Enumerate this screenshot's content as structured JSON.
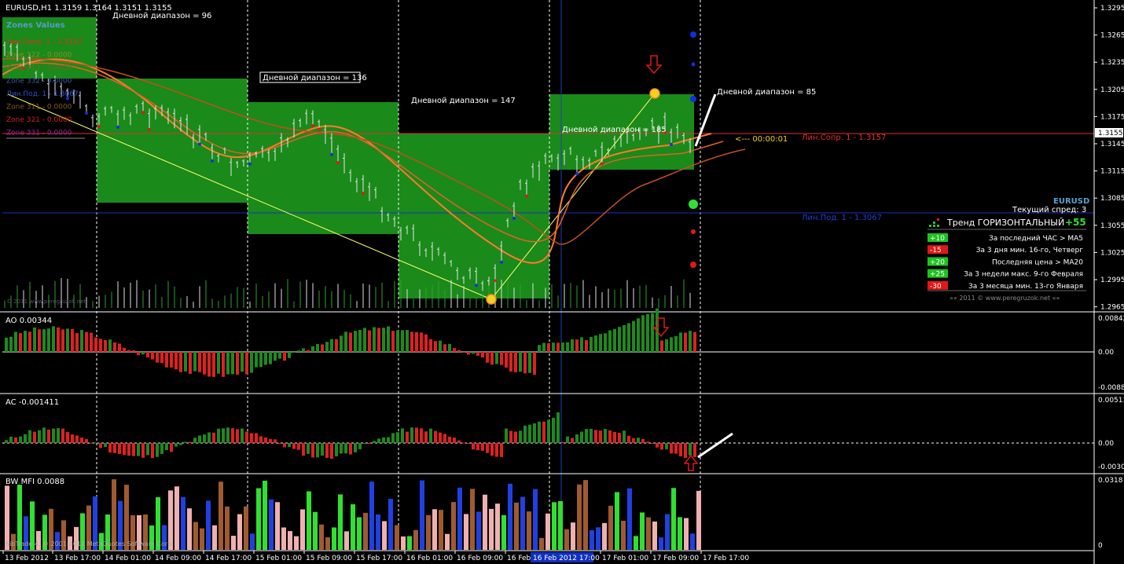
{
  "header": {
    "symbol_info": "EURUSD,H1  1.3159 1.3164 1.3151 1.3155"
  },
  "main_panel": {
    "price_ticks": [
      "1.3295",
      "1.3265",
      "1.3235",
      "1.3205",
      "1.3175",
      "1.3145",
      "1.3115",
      "1.3085",
      "1.3055",
      "1.3025",
      "1.2995",
      "1.2965"
    ],
    "current_price": "1.3155",
    "countdown": "<--- 00:00:01",
    "resistance_label": "Лин.Сопр. 1 - 1.3157",
    "support_label": "Лин.Под. 1 - 1.3067",
    "daily_ranges": [
      "Дневной диапазон = 96",
      "Дневной диапазон = 136",
      "Дневной диапазон = 147",
      "Дневной диапазон = 185",
      "Дневной диапазон = 85"
    ],
    "zones_title": "Zones Values",
    "zones": [
      {
        "text": "Лин.Сопр. 1 - 1.3157",
        "color": "#e03020"
      },
      {
        "text": "Zone 322 - 0.0000",
        "color": "#8a8a2a"
      },
      {
        "text": "Zone 312 - 0.0000",
        "color": "#6a6a2a"
      },
      {
        "text": "Zone 332 - 0.0000",
        "color": "#4060a0"
      },
      {
        "text": "Лин.Под. 1 - 1.3067",
        "color": "#3050d0"
      },
      {
        "text": "Zone 311 - 0.0000",
        "color": "#8a5a20"
      },
      {
        "text": "Zone 321 - 0.0000",
        "color": "#d02020"
      },
      {
        "text": "Zone 331 - 0.0000",
        "color": "#a020a0"
      }
    ],
    "small_corner_note": "© 2011 www.peregruzok.net"
  },
  "trend_panel": {
    "symbol": "EURUSD",
    "spread": "Текущий спред: 3",
    "title": "Тренд ГОРИЗОНТАЛЬНЫЙ",
    "score": "+55",
    "rows": [
      {
        "badge": "+10",
        "text": "За последний ЧАС > MA5",
        "color": "#1ec21e"
      },
      {
        "badge": "-15",
        "text": "За 3 дня мин. 16-го, Четверг",
        "color": "#e01818"
      },
      {
        "badge": "+20",
        "text": "Последняя цена > MA20",
        "color": "#1ec21e"
      },
      {
        "badge": "+25",
        "text": "За 3 недели макс. 9-го Февраля",
        "color": "#1ec21e"
      },
      {
        "badge": "-30",
        "text": "За 3 месяца мин. 13-го Января",
        "color": "#e01818"
      }
    ],
    "footer": "»»   2011  ©  www.peregruzok.net   ««"
  },
  "ao_panel": {
    "label": "AO 0.00344",
    "ticks": [
      "0.00842",
      "0.00",
      "-0.00882"
    ]
  },
  "ac_panel": {
    "label": "AC -0.001411",
    "ticks": [
      "0.00513",
      "0.00",
      "-0.00308"
    ]
  },
  "mfi_panel": {
    "label": "BW MFI 0.0088",
    "ticks": [
      "0.0318",
      "0"
    ]
  },
  "footer": {
    "copyright": "SibTrade 4, © 2001-2011 MetaQuotes Software Corp.",
    "time_labels": [
      "13 Feb 2012",
      "13 Feb 17:00",
      "14 Feb 01:00",
      "14 Feb 09:00",
      "14 Feb 17:00",
      "15 Feb 01:00",
      "15 Feb 09:00",
      "15 Feb 17:00",
      "16 Feb 01:00",
      "16 Feb 09:00",
      "16 Feb",
      "17 Feb 01:00",
      "17 Feb 09:00",
      "17 Feb 17:00"
    ],
    "cursor_time": "16 Feb 2012 17:00"
  },
  "colors": {
    "background": "#000000",
    "zone_green": "#1a8a1a",
    "bull_bar": "#1e8a1e",
    "bear_bar": "#e02020",
    "resistance": "#e03030",
    "support": "#2030c0"
  }
}
